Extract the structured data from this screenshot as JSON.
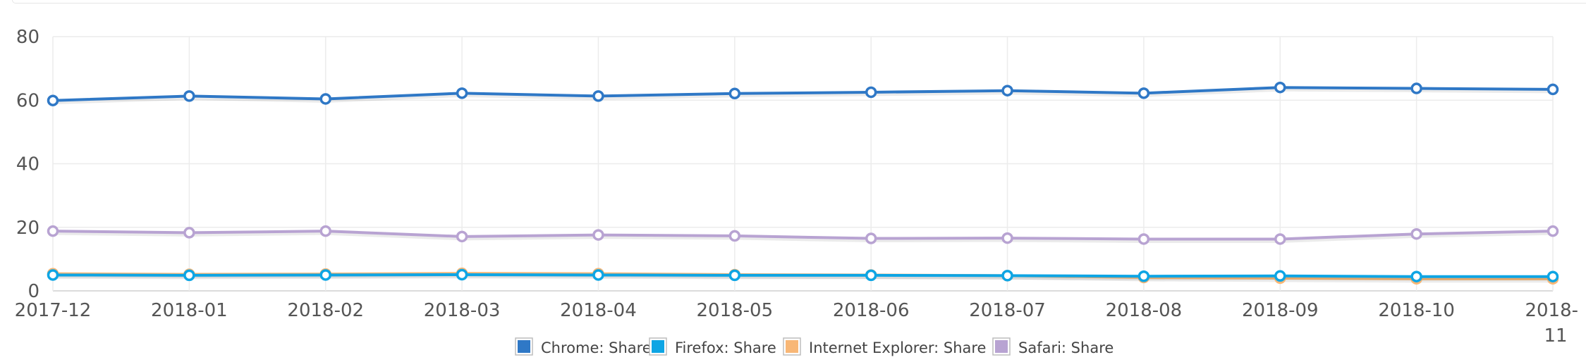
{
  "chart_data": {
    "type": "line",
    "title": "",
    "xlabel": "",
    "ylabel": "",
    "categories": [
      "2017-12",
      "2018-01",
      "2018-02",
      "2018-03",
      "2018-04",
      "2018-05",
      "2018-06",
      "2018-07",
      "2018-08",
      "2018-09",
      "2018-10",
      "2018-11"
    ],
    "x_tick_labels": [
      "2017-12",
      "2018-01",
      "2018-02",
      "2018-03",
      "2018-04",
      "2018-05",
      "2018-06",
      "2018-07",
      "2018-08",
      "2018-09",
      "2018-10",
      "2018-"
    ],
    "x_tick_wrap": "11",
    "ylim": [
      0,
      80
    ],
    "y_ticks": [
      "0",
      "20",
      "40",
      "60",
      "80"
    ],
    "grid": true,
    "legend_position": "bottom-center",
    "series": [
      {
        "name": "Chrome: Share",
        "color": "#2f78c6",
        "values": [
          59.9,
          61.3,
          60.4,
          62.2,
          61.3,
          62.1,
          62.5,
          63.0,
          62.2,
          64.0,
          63.7,
          63.4
        ]
      },
      {
        "name": "Firefox: Share",
        "color": "#0ea5e4",
        "values": [
          5.0,
          4.9,
          5.0,
          5.1,
          5.0,
          4.9,
          4.9,
          4.8,
          4.6,
          4.7,
          4.5,
          4.5
        ]
      },
      {
        "name": "Internet Explorer: Share",
        "color": "#f8b776",
        "values": [
          5.4,
          5.2,
          5.3,
          5.5,
          5.4,
          5.1,
          5.0,
          4.8,
          4.2,
          4.0,
          3.8,
          3.8
        ]
      },
      {
        "name": "Safari: Share",
        "color": "#b8a3d2",
        "values": [
          18.8,
          18.3,
          18.8,
          17.1,
          17.6,
          17.3,
          16.5,
          16.6,
          16.3,
          16.3,
          17.9,
          18.8
        ]
      }
    ]
  }
}
